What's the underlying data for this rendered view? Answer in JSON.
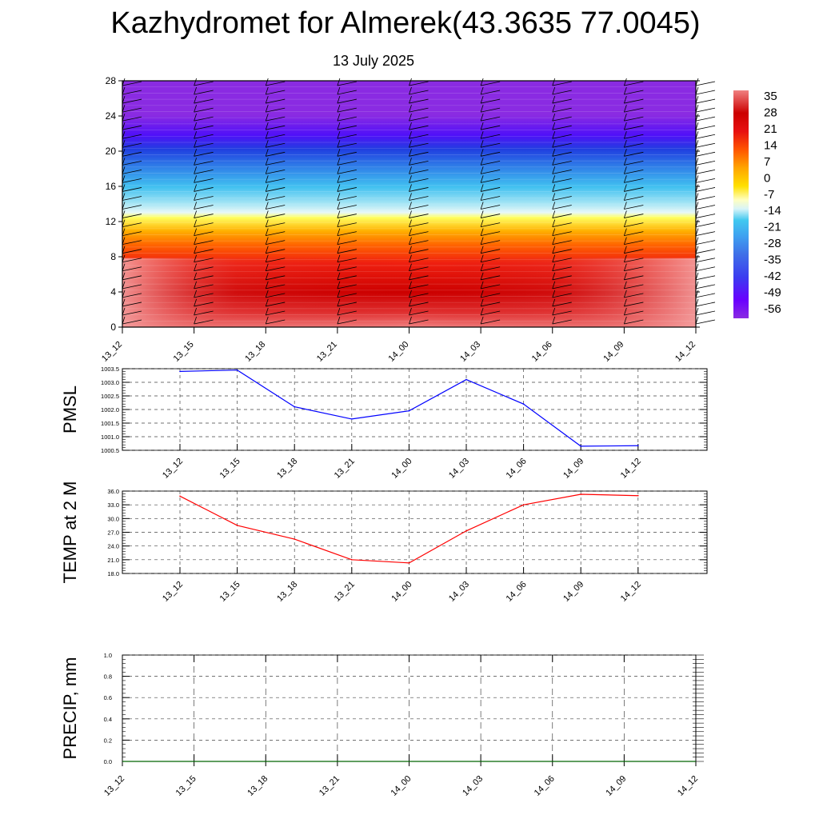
{
  "header": {
    "title": "Kazhydromet for Almerek(43.3635 77.0045)",
    "subtitle": "13 July 2025"
  },
  "colors": {
    "pmsl_line": "#0000ff",
    "temp_line": "#ff0000",
    "precip_line": "#006400",
    "colorbar": [
      "#8a2be2",
      "#6a00ff",
      "#3c3cf0",
      "#3f6fe8",
      "#3fa0f0",
      "#40c8f0",
      "#a8e6f5",
      "#ffffc0",
      "#ffe000",
      "#ffa500",
      "#ff5500",
      "#e81010",
      "#cc0000",
      "#d83838",
      "#f08080"
    ]
  },
  "chart_data": [
    {
      "type": "heatmap",
      "name": "vertical-profile",
      "x_ticks": [
        "13_12",
        "13_15",
        "13_18",
        "13_21",
        "14_00",
        "14_03",
        "14_06",
        "14_09",
        "14_12"
      ],
      "y_ticks": [
        "0",
        "4",
        "8",
        "12",
        "16",
        "20",
        "24",
        "28"
      ],
      "ylim": [
        0,
        28
      ],
      "colorbar_labels": [
        "35",
        "28",
        "21",
        "14",
        "7",
        "0",
        "-7",
        "-14",
        "-21",
        "-28",
        "-35",
        "-42",
        "-49",
        "-56"
      ],
      "overlay": "wind barbs",
      "grid": false
    },
    {
      "type": "line",
      "ylabel": "PMSL",
      "categories": [
        "13_12",
        "13_15",
        "13_18",
        "13_21",
        "14_00",
        "14_03",
        "14_06",
        "14_09",
        "14_12"
      ],
      "values": [
        1003.4,
        1003.45,
        1002.1,
        1001.65,
        1001.95,
        1003.1,
        1002.2,
        1000.65,
        1000.67
      ],
      "y_ticks": [
        "1003.5",
        "1003.0",
        "1002.5",
        "1002.0",
        "1001.5",
        "1001.0",
        "1000.5"
      ],
      "ylim": [
        1000.5,
        1003.5
      ],
      "grid": true
    },
    {
      "type": "line",
      "ylabel": "TEMP at 2 M",
      "categories": [
        "13_12",
        "13_15",
        "13_18",
        "13_21",
        "14_00",
        "14_03",
        "14_06",
        "14_09",
        "14_12"
      ],
      "values": [
        34.9,
        28.5,
        25.5,
        21.0,
        20.3,
        27.3,
        33.0,
        35.3,
        35.0
      ],
      "y_ticks": [
        "36.0",
        "33.0",
        "30.0",
        "27.0",
        "24.0",
        "21.0",
        "18.0"
      ],
      "ylim": [
        18,
        36
      ],
      "grid": true
    },
    {
      "type": "line",
      "ylabel": "PRECIP, mm",
      "categories": [
        "13_12",
        "13_15",
        "13_18",
        "13_21",
        "14_00",
        "14_03",
        "14_06",
        "14_09",
        "14_12"
      ],
      "values": [
        0,
        0,
        0,
        0,
        0,
        0,
        0,
        0,
        0
      ],
      "y_ticks": [
        "1.0",
        "0.8",
        "0.6",
        "0.4",
        "0.2",
        "0.0"
      ],
      "ylim": [
        0,
        1
      ],
      "grid": true
    }
  ]
}
